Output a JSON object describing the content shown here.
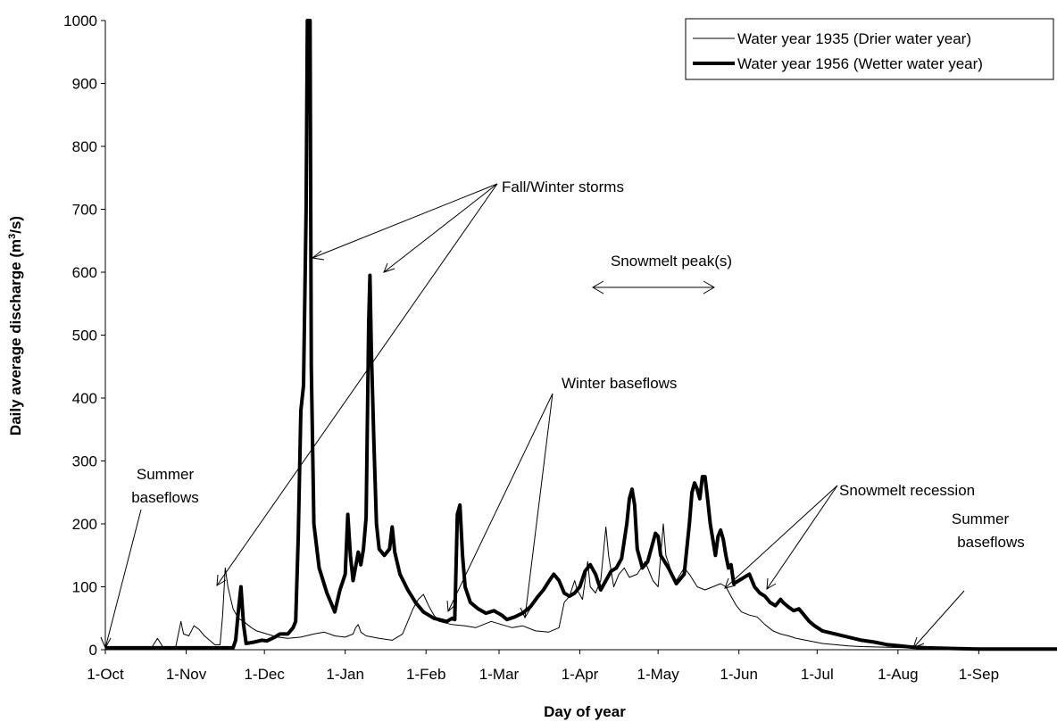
{
  "chart_data": {
    "type": "line",
    "xlabel": "Day of year",
    "ylabel": "Daily average discharge (m³/s)",
    "ylabel_parts": {
      "before": "Daily average discharge (m",
      "sup": "3",
      "after": "/s)"
    },
    "ylim": [
      0,
      1000
    ],
    "xlim": [
      0,
      365
    ],
    "y_ticks": [
      0,
      100,
      200,
      300,
      400,
      500,
      600,
      700,
      800,
      900,
      1000
    ],
    "x_ticks": [
      {
        "day": 0,
        "label": "1-Oct"
      },
      {
        "day": 31,
        "label": "1-Nov"
      },
      {
        "day": 61,
        "label": "1-Dec"
      },
      {
        "day": 92,
        "label": "1-Jan"
      },
      {
        "day": 123,
        "label": "1-Feb"
      },
      {
        "day": 151,
        "label": "1-Mar"
      },
      {
        "day": 182,
        "label": "1-Apr"
      },
      {
        "day": 212,
        "label": "1-May"
      },
      {
        "day": 243,
        "label": "1-Jun"
      },
      {
        "day": 273,
        "label": "1-Jul"
      },
      {
        "day": 304,
        "label": "1-Aug"
      },
      {
        "day": 335,
        "label": "1-Sep"
      }
    ],
    "legend_position": "top-right",
    "series": [
      {
        "name": "Water year 1935 (Drier water year)",
        "style": "thin",
        "color": "#000000",
        "points": [
          [
            0,
            5
          ],
          [
            10,
            5
          ],
          [
            18,
            5
          ],
          [
            20,
            18
          ],
          [
            22,
            5
          ],
          [
            27,
            5
          ],
          [
            29,
            45
          ],
          [
            30,
            25
          ],
          [
            32,
            22
          ],
          [
            34,
            38
          ],
          [
            36,
            32
          ],
          [
            38,
            22
          ],
          [
            42,
            8
          ],
          [
            44,
            8
          ],
          [
            45,
            55
          ],
          [
            46,
            130
          ],
          [
            47,
            100
          ],
          [
            49,
            65
          ],
          [
            51,
            50
          ],
          [
            53,
            45
          ],
          [
            56,
            35
          ],
          [
            58,
            30
          ],
          [
            62,
            25
          ],
          [
            66,
            20
          ],
          [
            70,
            18
          ],
          [
            75,
            20
          ],
          [
            80,
            25
          ],
          [
            84,
            28
          ],
          [
            88,
            22
          ],
          [
            92,
            20
          ],
          [
            95,
            25
          ],
          [
            96,
            35
          ],
          [
            97,
            40
          ],
          [
            98,
            28
          ],
          [
            100,
            22
          ],
          [
            105,
            18
          ],
          [
            110,
            15
          ],
          [
            114,
            25
          ],
          [
            116,
            45
          ],
          [
            118,
            65
          ],
          [
            120,
            80
          ],
          [
            122,
            88
          ],
          [
            124,
            70
          ],
          [
            126,
            55
          ],
          [
            128,
            45
          ],
          [
            133,
            40
          ],
          [
            138,
            38
          ],
          [
            142,
            35
          ],
          [
            145,
            40
          ],
          [
            148,
            45
          ],
          [
            152,
            40
          ],
          [
            156,
            35
          ],
          [
            160,
            38
          ],
          [
            165,
            30
          ],
          [
            170,
            28
          ],
          [
            174,
            35
          ],
          [
            176,
            75
          ],
          [
            178,
            85
          ],
          [
            180,
            110
          ],
          [
            181,
            95
          ],
          [
            183,
            80
          ],
          [
            185,
            140
          ],
          [
            186,
            100
          ],
          [
            188,
            90
          ],
          [
            190,
            110
          ],
          [
            192,
            195
          ],
          [
            193,
            150
          ],
          [
            195,
            100
          ],
          [
            197,
            120
          ],
          [
            199,
            130
          ],
          [
            201,
            115
          ],
          [
            204,
            120
          ],
          [
            207,
            140
          ],
          [
            210,
            110
          ],
          [
            212,
            100
          ],
          [
            214,
            200
          ],
          [
            215,
            150
          ],
          [
            217,
            125
          ],
          [
            219,
            110
          ],
          [
            222,
            130
          ],
          [
            224,
            120
          ],
          [
            227,
            100
          ],
          [
            230,
            95
          ],
          [
            233,
            100
          ],
          [
            236,
            105
          ],
          [
            238,
            100
          ],
          [
            240,
            85
          ],
          [
            242,
            70
          ],
          [
            244,
            60
          ],
          [
            247,
            55
          ],
          [
            250,
            52
          ],
          [
            253,
            40
          ],
          [
            256,
            30
          ],
          [
            259,
            25
          ],
          [
            262,
            22
          ],
          [
            265,
            18
          ],
          [
            270,
            14
          ],
          [
            275,
            10
          ],
          [
            280,
            8
          ],
          [
            285,
            6
          ],
          [
            290,
            5
          ],
          [
            300,
            4
          ],
          [
            310,
            3
          ],
          [
            320,
            2
          ],
          [
            330,
            2
          ],
          [
            345,
            1
          ],
          [
            365,
            1
          ]
        ]
      },
      {
        "name": "Water year 1956 (Wetter water year)",
        "style": "thick",
        "color": "#000000",
        "points": [
          [
            0,
            3
          ],
          [
            20,
            3
          ],
          [
            40,
            3
          ],
          [
            49,
            3
          ],
          [
            50,
            15
          ],
          [
            51,
            60
          ],
          [
            52,
            100
          ],
          [
            53,
            40
          ],
          [
            54,
            10
          ],
          [
            57,
            12
          ],
          [
            60,
            15
          ],
          [
            62,
            14
          ],
          [
            65,
            20
          ],
          [
            67,
            25
          ],
          [
            70,
            25
          ],
          [
            72,
            35
          ],
          [
            73,
            45
          ],
          [
            74,
            180
          ],
          [
            75,
            380
          ],
          [
            76,
            420
          ],
          [
            77,
            700
          ],
          [
            77.5,
            1000
          ],
          [
            78.5,
            1000
          ],
          [
            79,
            450
          ],
          [
            80,
            200
          ],
          [
            82,
            130
          ],
          [
            85,
            90
          ],
          [
            87,
            70
          ],
          [
            88,
            60
          ],
          [
            90,
            95
          ],
          [
            92,
            120
          ],
          [
            93,
            215
          ],
          [
            94,
            150
          ],
          [
            95,
            110
          ],
          [
            97,
            155
          ],
          [
            98,
            135
          ],
          [
            99,
            160
          ],
          [
            100,
            210
          ],
          [
            101,
            520
          ],
          [
            101.5,
            595
          ],
          [
            102,
            480
          ],
          [
            103,
            330
          ],
          [
            104,
            200
          ],
          [
            105,
            160
          ],
          [
            107,
            150
          ],
          [
            109,
            160
          ],
          [
            110,
            195
          ],
          [
            111,
            155
          ],
          [
            113,
            120
          ],
          [
            116,
            95
          ],
          [
            119,
            75
          ],
          [
            122,
            60
          ],
          [
            124,
            55
          ],
          [
            126,
            50
          ],
          [
            128,
            48
          ],
          [
            131,
            45
          ],
          [
            133,
            50
          ],
          [
            134,
            48
          ],
          [
            135,
            215
          ],
          [
            136,
            230
          ],
          [
            137,
            150
          ],
          [
            138,
            100
          ],
          [
            140,
            75
          ],
          [
            143,
            65
          ],
          [
            146,
            58
          ],
          [
            149,
            62
          ],
          [
            152,
            55
          ],
          [
            154,
            48
          ],
          [
            157,
            52
          ],
          [
            160,
            58
          ],
          [
            163,
            68
          ],
          [
            166,
            85
          ],
          [
            168,
            95
          ],
          [
            170,
            108
          ],
          [
            172,
            120
          ],
          [
            174,
            110
          ],
          [
            176,
            90
          ],
          [
            178,
            85
          ],
          [
            180,
            90
          ],
          [
            182,
            100
          ],
          [
            184,
            125
          ],
          [
            186,
            135
          ],
          [
            188,
            120
          ],
          [
            190,
            95
          ],
          [
            192,
            110
          ],
          [
            194,
            125
          ],
          [
            196,
            130
          ],
          [
            198,
            145
          ],
          [
            200,
            200
          ],
          [
            201,
            240
          ],
          [
            202,
            255
          ],
          [
            203,
            230
          ],
          [
            204,
            160
          ],
          [
            206,
            130
          ],
          [
            208,
            140
          ],
          [
            210,
            170
          ],
          [
            211,
            185
          ],
          [
            212,
            180
          ],
          [
            213,
            150
          ],
          [
            216,
            130
          ],
          [
            219,
            105
          ],
          [
            222,
            120
          ],
          [
            224,
            200
          ],
          [
            225,
            250
          ],
          [
            226,
            265
          ],
          [
            227,
            255
          ],
          [
            228,
            240
          ],
          [
            229,
            275
          ],
          [
            230,
            275
          ],
          [
            231,
            240
          ],
          [
            232,
            200
          ],
          [
            234,
            150
          ],
          [
            235,
            180
          ],
          [
            236,
            190
          ],
          [
            237,
            175
          ],
          [
            238,
            150
          ],
          [
            239,
            130
          ],
          [
            240,
            135
          ],
          [
            241,
            105
          ],
          [
            243,
            110
          ],
          [
            245,
            115
          ],
          [
            247,
            120
          ],
          [
            249,
            100
          ],
          [
            251,
            90
          ],
          [
            253,
            85
          ],
          [
            255,
            75
          ],
          [
            257,
            70
          ],
          [
            259,
            80
          ],
          [
            260,
            75
          ],
          [
            262,
            68
          ],
          [
            264,
            62
          ],
          [
            266,
            65
          ],
          [
            268,
            55
          ],
          [
            270,
            45
          ],
          [
            272,
            38
          ],
          [
            275,
            30
          ],
          [
            280,
            25
          ],
          [
            285,
            20
          ],
          [
            290,
            15
          ],
          [
            295,
            12
          ],
          [
            300,
            8
          ],
          [
            305,
            6
          ],
          [
            310,
            4
          ],
          [
            315,
            3
          ],
          [
            325,
            2
          ],
          [
            335,
            1
          ],
          [
            365,
            1
          ]
        ]
      }
    ],
    "annotations": [
      {
        "text": "Summer",
        "arrow_from": null
      },
      {
        "text": "baseflows"
      },
      {
        "text": "Fall/Winter storms"
      },
      {
        "text": "Winter baseflows"
      },
      {
        "text": "Snowmelt peak(s)"
      },
      {
        "text": "Snowmelt recession"
      },
      {
        "text": "Summer"
      },
      {
        "text": "baseflows"
      }
    ]
  }
}
